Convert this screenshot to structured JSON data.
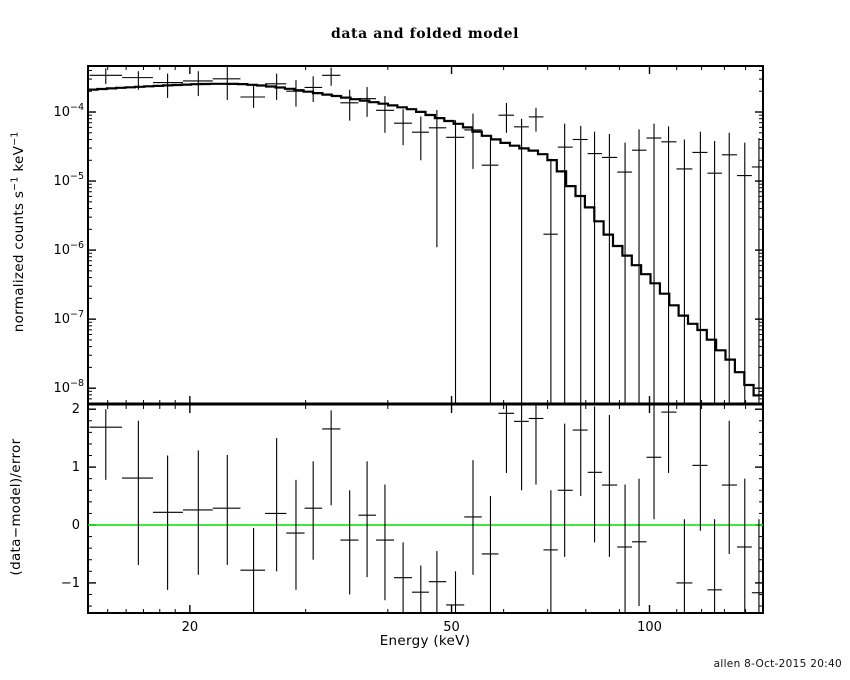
{
  "title": "data and folded model",
  "credit": "allen  8-Oct-2015 20:40",
  "colors": {
    "foreground": "#000000",
    "background": "#ffffff",
    "zero_line": "#00e000"
  },
  "chart_data": {
    "type": "scatter",
    "xscale": "log",
    "xlabel": "Energy (keV)",
    "xlim": [
      14.0,
      148.8
    ],
    "xticks": {
      "major": [
        20,
        50,
        100
      ],
      "labels": [
        "20",
        "50",
        "100"
      ],
      "minor": [
        15,
        16,
        17,
        18,
        19,
        30,
        40,
        60,
        70,
        80,
        90,
        110,
        120,
        130,
        140
      ]
    },
    "panels": [
      {
        "name": "spectrum",
        "ylabel": {
          "pre": "normalized counts s",
          "sup1": "−1",
          "mid": " keV",
          "sup2": "−1"
        },
        "yscale": "log",
        "ylim": [
          5.9e-09,
          0.000464
        ],
        "yticks": {
          "major_exponents": [
            -4,
            -5,
            -6,
            -7,
            -8
          ]
        },
        "model_curve": {
          "E": [
            14.0,
            16,
            18,
            20,
            22,
            24,
            26,
            28,
            30,
            33,
            36,
            40,
            44,
            48,
            52,
            56,
            60,
            64,
            68,
            72,
            76,
            80,
            84,
            88,
            92,
            96,
            100,
            104,
            108,
            112,
            116,
            120,
            124,
            128,
            132,
            136,
            140,
            144,
            148.8
          ],
          "log10_value": [
            -3.68,
            -3.645,
            -3.62,
            -3.6,
            -3.59,
            -3.595,
            -3.62,
            -3.655,
            -3.7,
            -3.76,
            -3.82,
            -3.89,
            -3.97,
            -4.09,
            -4.19,
            -4.33,
            -4.44,
            -4.52,
            -4.58,
            -4.73,
            -5.08,
            -5.3,
            -5.6,
            -5.87,
            -6.06,
            -6.24,
            -6.4,
            -6.56,
            -6.76,
            -6.93,
            -7.06,
            -7.15,
            -7.29,
            -7.44,
            -7.56,
            -7.72,
            -7.9,
            -8.03,
            -8.18
          ]
        },
        "bins": {
          "energy": [
            14.9,
            16.7,
            18.5,
            20.6,
            22.8,
            25.0,
            27.1,
            29.0,
            30.8,
            32.8,
            35.0,
            37.2,
            39.6,
            42.2,
            44.9,
            47.5,
            50.7,
            53.9,
            57.3,
            60.6,
            63.9,
            67.2,
            70.8,
            74.3,
            78.6,
            82.5,
            86.9,
            91.8,
            96.4,
            101.6,
            106.9,
            113.0,
            119.5,
            125.6,
            132.2,
            139.6,
            146.7
          ],
          "value": [
            0.00034,
            0.000315,
            0.000267,
            0.000282,
            0.000303,
            0.000165,
            0.000256,
            0.0002,
            0.000227,
            0.00034,
            0.000136,
            0.000156,
            0.000106,
            6.9e-05,
            5.1e-05,
            5.9e-05,
            4.3e-05,
            5.5e-05,
            1.7e-05,
            9e-05,
            6.1e-05,
            8.5e-05,
            1.7e-06,
            3.1e-05,
            4e-05,
            2.5e-05,
            2.2e-05,
            1.35e-05,
            2.8e-05,
            4.2e-05,
            3.7e-05,
            1.5e-05,
            2.6e-05,
            1.3e-05,
            2.4e-05,
            1.2e-05,
            1.6e-05
          ],
          "bar_lo": [
            0.000255,
            0.00021,
            0.00016,
            0.00017,
            0.00015,
            0.000115,
            0.00015,
            0.00012,
            0.00014,
            0.00024,
            7.5e-05,
            8.5e-05,
            5e-05,
            3.3e-05,
            2e-05,
            1.1e-06,
            0,
            1.5e-05,
            0,
            5e-05,
            0,
            5.2e-05,
            0,
            0,
            0,
            0,
            0,
            0,
            0,
            0,
            0,
            0,
            0,
            0,
            0,
            0,
            0
          ],
          "bar_hi": [
            0.00043,
            0.00039,
            0.00036,
            0.00039,
            0.00046,
            0.00025,
            0.00036,
            0.00029,
            0.00033,
            0.00044,
            0.00021,
            0.00023,
            0.00017,
            0.00011,
            8.6e-05,
            0.000107,
            7.6e-05,
            9.5e-05,
            4.5e-05,
            0.000135,
            8e-05,
            0.000115,
            2.1e-05,
            6.8e-05,
            6.3e-05,
            5.2e-05,
            4.8e-05,
            3.6e-05,
            5.6e-05,
            6.8e-05,
            6.2e-05,
            4e-05,
            5.2e-05,
            3.8e-05,
            5e-05,
            3.6e-05,
            4.2e-05
          ],
          "model": [
            0.000214,
            0.000234,
            0.000243,
            0.000251,
            0.000257,
            0.000251,
            0.000234,
            0.000214,
            0.000195,
            0.000174,
            0.000158,
            0.000141,
            0.000126,
            0.000112,
            0.0001,
            8e-05,
            6.6e-05,
            5.1e-05,
            3.9e-05,
            3.7e-05,
            3e-05,
            2.6e-05,
            1.8e-05,
            8.9e-06,
            5e-06,
            2.8e-06,
            1.5e-06,
            8.9e-07,
            5.6e-07,
            3.4e-07,
            2e-07,
            1.1e-07,
            7.6e-08,
            4.8e-08,
            2.8e-08,
            1.5e-08,
            7.6e-09
          ]
        }
      },
      {
        "name": "residuals",
        "ylabel_text": "(data−model)/error",
        "yscale": "linear",
        "ylim": [
          -1.52,
          2.09
        ],
        "yticks": {
          "major": [
            -1,
            0,
            1,
            2
          ],
          "labels": [
            "−1",
            "0",
            "1",
            "2"
          ],
          "minor_step": 0.2
        },
        "zero_line": 0,
        "bins": {
          "residual": [
            1.69,
            0.81,
            0.22,
            0.26,
            0.29,
            -0.78,
            0.2,
            -0.14,
            0.29,
            1.66,
            -0.26,
            0.17,
            -0.26,
            -0.91,
            -1.16,
            -0.98,
            -1.38,
            0.14,
            -0.5,
            1.93,
            1.79,
            1.84,
            -0.43,
            0.6,
            1.64,
            0.91,
            0.69,
            -0.38,
            -0.29,
            1.17,
            1.95,
            -1.0,
            1.03,
            -1.12,
            0.69,
            -0.38,
            -1.17
          ],
          "bar_lo": [
            0.78,
            -0.69,
            -1.12,
            -0.86,
            -0.69,
            -1.52,
            -0.8,
            -1.12,
            -0.6,
            0.34,
            -1.2,
            -0.9,
            -1.3,
            -1.52,
            -1.52,
            -1.52,
            -1.52,
            -0.86,
            -1.52,
            0.9,
            0.6,
            0.7,
            -1.52,
            -0.55,
            0.5,
            -0.3,
            -0.55,
            -1.52,
            -1.4,
            0.1,
            0.9,
            -1.52,
            -0.1,
            -1.52,
            -0.5,
            -1.52,
            -1.52
          ],
          "bar_hi": [
            2.0,
            1.8,
            1.2,
            1.29,
            1.21,
            -0.05,
            1.5,
            0.78,
            1.1,
            1.98,
            0.6,
            1.1,
            0.7,
            -0.3,
            -0.7,
            -0.45,
            -0.8,
            1.12,
            0.5,
            2.09,
            2.09,
            2.09,
            0.6,
            1.75,
            2.09,
            2.05,
            1.9,
            0.7,
            0.8,
            2.09,
            2.09,
            0.1,
            2.09,
            0.1,
            1.8,
            0.8,
            0.1
          ]
        }
      }
    ]
  }
}
